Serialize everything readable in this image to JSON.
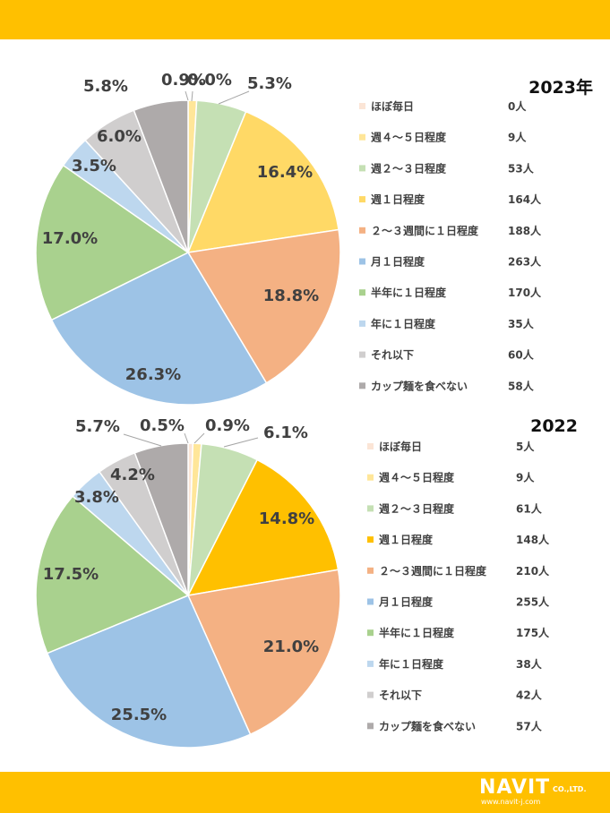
{
  "brand": {
    "name": "NAVIT",
    "suffix": "CO.,LTD.",
    "url": "www.navit-j.com"
  },
  "chart_data": [
    {
      "type": "pie",
      "title": "2023年",
      "categories": [
        "ほぼ毎日",
        "週４～５日程度",
        "週２～３日程度",
        "週１日程度",
        "２～３週間に１日程度",
        "月１日程度",
        "半年に１日程度",
        "年に１日程度",
        "それ以下",
        "カップ麺を食べない"
      ],
      "values": [
        0,
        9,
        53,
        164,
        188,
        263,
        170,
        35,
        60,
        58
      ],
      "value_labels": [
        "0人",
        "9人",
        "53人",
        "164人",
        "188人",
        "263人",
        "170人",
        "35人",
        "60人",
        "58人"
      ],
      "percent_labels": [
        "0.0%",
        "0.9%",
        "5.3%",
        "16.4%",
        "18.8%",
        "26.3%",
        "17.0%",
        "3.5%",
        "6.0%",
        "5.8%"
      ],
      "colors": [
        "#fbe5d6",
        "#ffe699",
        "#c5e0b4",
        "#ffd966",
        "#f4b183",
        "#9dc3e6",
        "#a9d18e",
        "#bdd7ee",
        "#d0cece",
        "#aeaaaa"
      ],
      "legend_position": "right"
    },
    {
      "type": "pie",
      "title": "2022",
      "categories": [
        "ほぼ毎日",
        "週４～５日程度",
        "週２～３日程度",
        "週１日程度",
        "２～３週間に１日程度",
        "月１日程度",
        "半年に１日程度",
        "年に１日程度",
        "それ以下",
        "カップ麺を食べない"
      ],
      "values": [
        5,
        9,
        61,
        148,
        210,
        255,
        175,
        38,
        42,
        57
      ],
      "value_labels": [
        "5人",
        "9人",
        "61人",
        "148人",
        "210人",
        "255人",
        "175人",
        "38人",
        "42人",
        "57人"
      ],
      "percent_labels": [
        "0.5%",
        "0.9%",
        "6.1%",
        "14.8%",
        "21.0%",
        "25.5%",
        "17.5%",
        "3.8%",
        "4.2%",
        "5.7%"
      ],
      "colors": [
        "#fbe5d6",
        "#ffe699",
        "#c5e0b4",
        "#ffc000",
        "#f4b183",
        "#9dc3e6",
        "#a9d18e",
        "#bdd7ee",
        "#d0cece",
        "#aeaaaa"
      ],
      "legend_position": "right"
    }
  ]
}
